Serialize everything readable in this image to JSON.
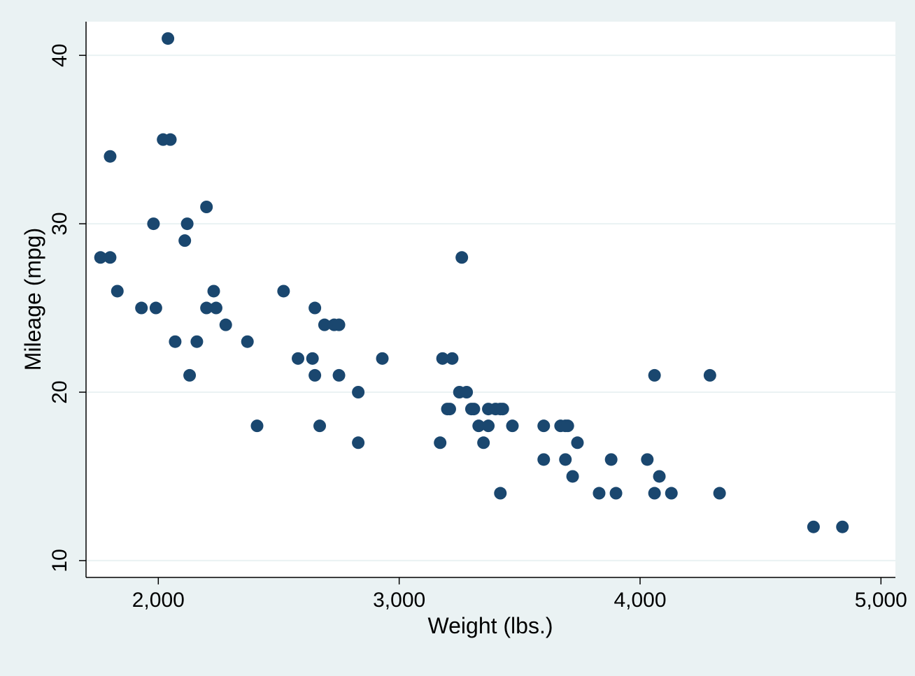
{
  "chart_data": {
    "type": "scatter",
    "title": "",
    "xlabel": "Weight (lbs.)",
    "ylabel": "Mileage (mpg)",
    "xlim": [
      1700,
      5060
    ],
    "ylim": [
      9,
      42
    ],
    "xticks": [
      2000,
      3000,
      4000,
      5000
    ],
    "xtick_labels": [
      "2,000",
      "3,000",
      "4,000",
      "5,000"
    ],
    "yticks": [
      10,
      20,
      30,
      40
    ],
    "ytick_labels": [
      "10",
      "20",
      "30",
      "40"
    ],
    "grid": "horizontal",
    "legend": "none",
    "colors": {
      "marker": "#1a476f",
      "plot_background": "#ffffff",
      "outer_background": "#eaf2f3",
      "grid": "#eaf2f3",
      "axis": "#000000"
    },
    "points": [
      {
        "x": 1760,
        "y": 28
      },
      {
        "x": 1800,
        "y": 34
      },
      {
        "x": 1800,
        "y": 28
      },
      {
        "x": 1830,
        "y": 26
      },
      {
        "x": 1930,
        "y": 25
      },
      {
        "x": 1980,
        "y": 30
      },
      {
        "x": 1990,
        "y": 25
      },
      {
        "x": 2020,
        "y": 35
      },
      {
        "x": 2040,
        "y": 41
      },
      {
        "x": 2050,
        "y": 35
      },
      {
        "x": 2070,
        "y": 23
      },
      {
        "x": 2110,
        "y": 29
      },
      {
        "x": 2120,
        "y": 30
      },
      {
        "x": 2130,
        "y": 21
      },
      {
        "x": 2160,
        "y": 23
      },
      {
        "x": 2200,
        "y": 31
      },
      {
        "x": 2200,
        "y": 25
      },
      {
        "x": 2230,
        "y": 26
      },
      {
        "x": 2240,
        "y": 25
      },
      {
        "x": 2280,
        "y": 24
      },
      {
        "x": 2370,
        "y": 23
      },
      {
        "x": 2410,
        "y": 18
      },
      {
        "x": 2520,
        "y": 26
      },
      {
        "x": 2580,
        "y": 22
      },
      {
        "x": 2640,
        "y": 22
      },
      {
        "x": 2650,
        "y": 25
      },
      {
        "x": 2650,
        "y": 21
      },
      {
        "x": 2670,
        "y": 18
      },
      {
        "x": 2690,
        "y": 24
      },
      {
        "x": 2730,
        "y": 24
      },
      {
        "x": 2750,
        "y": 24
      },
      {
        "x": 2750,
        "y": 21
      },
      {
        "x": 2830,
        "y": 20
      },
      {
        "x": 2830,
        "y": 17
      },
      {
        "x": 2930,
        "y": 22
      },
      {
        "x": 3170,
        "y": 17
      },
      {
        "x": 3180,
        "y": 22
      },
      {
        "x": 3200,
        "y": 19
      },
      {
        "x": 3210,
        "y": 19
      },
      {
        "x": 3220,
        "y": 22
      },
      {
        "x": 3250,
        "y": 20
      },
      {
        "x": 3260,
        "y": 28
      },
      {
        "x": 3280,
        "y": 20
      },
      {
        "x": 3300,
        "y": 19
      },
      {
        "x": 3310,
        "y": 19
      },
      {
        "x": 3330,
        "y": 18
      },
      {
        "x": 3350,
        "y": 17
      },
      {
        "x": 3370,
        "y": 19
      },
      {
        "x": 3370,
        "y": 18
      },
      {
        "x": 3400,
        "y": 19
      },
      {
        "x": 3420,
        "y": 19
      },
      {
        "x": 3420,
        "y": 14
      },
      {
        "x": 3430,
        "y": 19
      },
      {
        "x": 3470,
        "y": 18
      },
      {
        "x": 3600,
        "y": 18
      },
      {
        "x": 3600,
        "y": 16
      },
      {
        "x": 3670,
        "y": 18
      },
      {
        "x": 3690,
        "y": 16
      },
      {
        "x": 3690,
        "y": 18
      },
      {
        "x": 3700,
        "y": 18
      },
      {
        "x": 3720,
        "y": 15
      },
      {
        "x": 3740,
        "y": 17
      },
      {
        "x": 3830,
        "y": 14
      },
      {
        "x": 3880,
        "y": 16
      },
      {
        "x": 3900,
        "y": 14
      },
      {
        "x": 4030,
        "y": 16
      },
      {
        "x": 4060,
        "y": 21
      },
      {
        "x": 4060,
        "y": 14
      },
      {
        "x": 4080,
        "y": 15
      },
      {
        "x": 4130,
        "y": 14
      },
      {
        "x": 4290,
        "y": 21
      },
      {
        "x": 4330,
        "y": 14
      },
      {
        "x": 4720,
        "y": 12
      },
      {
        "x": 4840,
        "y": 12
      }
    ]
  }
}
